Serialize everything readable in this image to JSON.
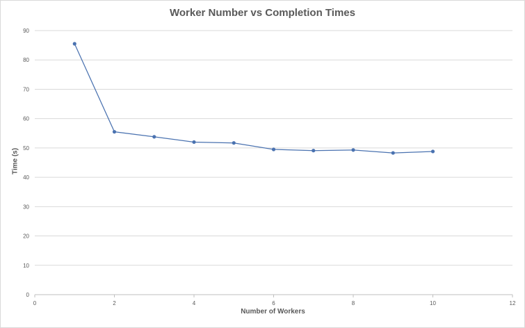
{
  "chart_data": {
    "type": "line",
    "title": "Worker Number vs Completion Times",
    "xlabel": "Number of Workers",
    "ylabel": "Time (s)",
    "xlim": [
      0,
      12
    ],
    "ylim": [
      0,
      90
    ],
    "xticks": [
      0,
      2,
      4,
      6,
      8,
      10,
      12
    ],
    "yticks": [
      0,
      10,
      20,
      30,
      40,
      50,
      60,
      70,
      80,
      90
    ],
    "grid": "horizontal",
    "legend": "none",
    "series": [
      {
        "x": [
          1,
          2,
          3,
          4,
          5,
          6,
          7,
          8,
          9,
          10
        ],
        "y": [
          85.5,
          55.5,
          53.8,
          52.0,
          51.7,
          49.5,
          49.1,
          49.3,
          48.3,
          48.8
        ],
        "color": "#4a72b0"
      }
    ]
  }
}
